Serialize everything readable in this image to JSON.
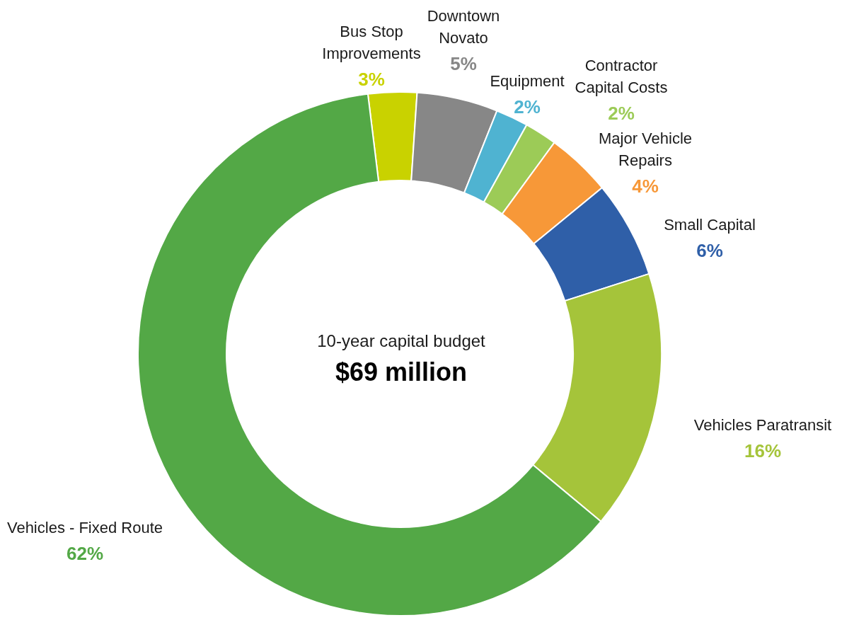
{
  "chart_data": {
    "type": "donut",
    "title": "10-year capital budget",
    "subtitle": "$69 million",
    "categories": [
      "Bus Stop Improvements",
      "Downtown Novato",
      "Equipment",
      "Contractor Capital Costs",
      "Major Vehicle Repairs",
      "Small Capital",
      "Vehicles Paratransit",
      "Vehicles - Fixed Route"
    ],
    "values": [
      3,
      5,
      2,
      2,
      4,
      6,
      16,
      62
    ],
    "value_labels": [
      "3%",
      "5%",
      "2%",
      "2%",
      "4%",
      "6%",
      "16%",
      "62%"
    ],
    "colors": [
      "#c9d200",
      "#878787",
      "#4fb3d1",
      "#9ccb57",
      "#f79838",
      "#2f5fa8",
      "#a5c43a",
      "#53a846"
    ]
  }
}
